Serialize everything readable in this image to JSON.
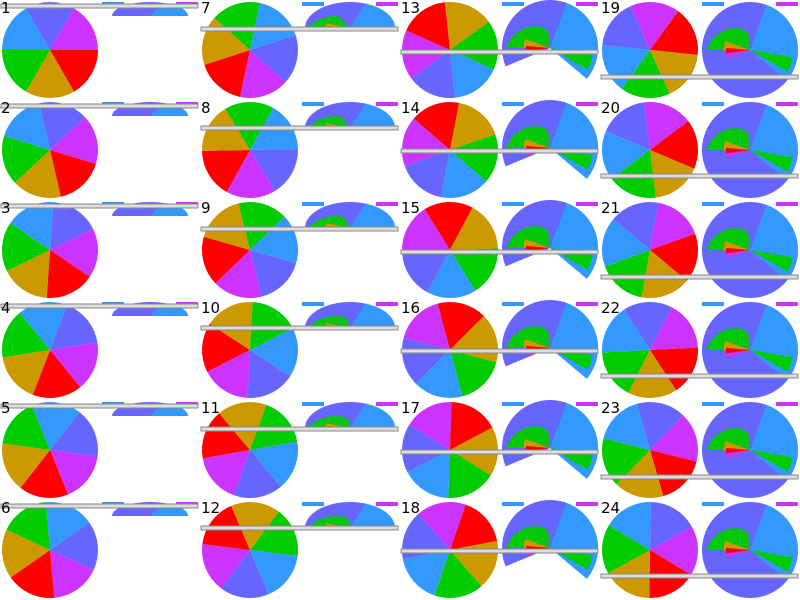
{
  "labels": [
    "1",
    "2",
    "3",
    "4",
    "5",
    "6",
    "7",
    "8",
    "9",
    "10",
    "11",
    "12",
    "13",
    "14",
    "15",
    "16",
    "17",
    "18",
    "19",
    "20",
    "21",
    "22",
    "23",
    "24"
  ],
  "wedge_colors": [
    "#6666ff",
    "#cc33ff",
    "#ff0000",
    "#cc9900",
    "#00cc00",
    "#3399ff"
  ]
}
